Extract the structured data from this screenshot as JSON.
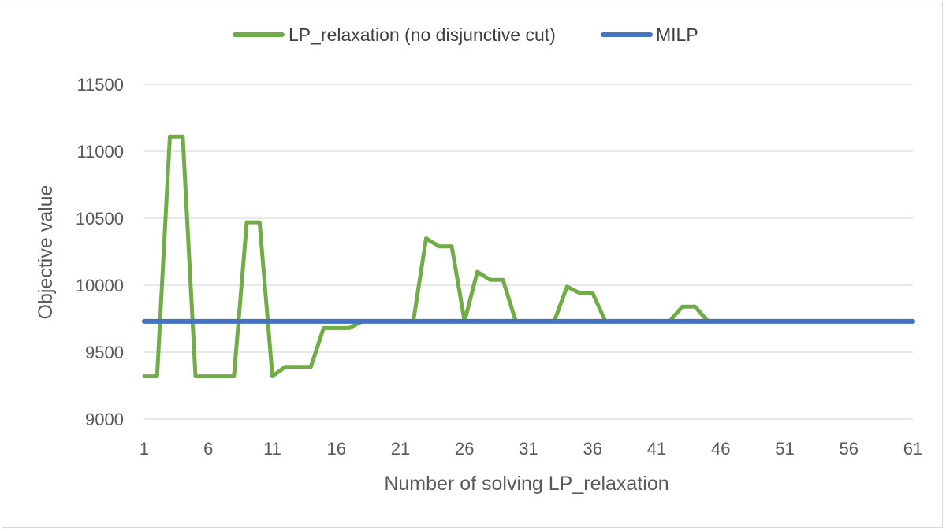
{
  "chart_data": {
    "type": "line",
    "xlabel": "Number of solving LP_relaxation",
    "ylabel": "Objective value",
    "ylim": [
      9000,
      11500
    ],
    "y_ticks": [
      9000,
      9500,
      10000,
      10500,
      11000,
      11500
    ],
    "xlim": [
      1,
      61
    ],
    "x_ticks": [
      1,
      6,
      11,
      16,
      21,
      26,
      31,
      36,
      41,
      46,
      51,
      56,
      61
    ],
    "grid": "horizontal",
    "legend_position": "top",
    "x": [
      1,
      2,
      3,
      4,
      5,
      6,
      7,
      8,
      9,
      10,
      11,
      12,
      13,
      14,
      15,
      16,
      17,
      18,
      19,
      20,
      21,
      22,
      23,
      24,
      25,
      26,
      27,
      28,
      29,
      30,
      31,
      32,
      33,
      34,
      35,
      36,
      37,
      38,
      39,
      40,
      41,
      42,
      43,
      44,
      45,
      46,
      47,
      48,
      49,
      50,
      51,
      52,
      53,
      54,
      55,
      56,
      57,
      58,
      59,
      60,
      61
    ],
    "series": [
      {
        "name": "LP_relaxation (no disjunctive cut)",
        "color": "#70ad47",
        "values": [
          9320,
          9320,
          11110,
          11110,
          9320,
          9320,
          9320,
          9320,
          10470,
          10470,
          9320,
          9390,
          9390,
          9390,
          9680,
          9680,
          9680,
          9730,
          9730,
          9730,
          9730,
          9730,
          10350,
          10290,
          10290,
          9730,
          10100,
          10040,
          10040,
          9730,
          9730,
          9730,
          9730,
          9990,
          9940,
          9940,
          9730,
          9730,
          9730,
          9730,
          9730,
          9730,
          9840,
          9840,
          9730,
          9730,
          9730,
          9730,
          9730,
          9730,
          9730,
          9730,
          9730,
          9730,
          9730,
          9730,
          9730,
          9730,
          9730,
          9730,
          9730
        ]
      },
      {
        "name": "MILP",
        "color": "#4472c4",
        "values": [
          9730,
          9730,
          9730,
          9730,
          9730,
          9730,
          9730,
          9730,
          9730,
          9730,
          9730,
          9730,
          9730,
          9730,
          9730,
          9730,
          9730,
          9730,
          9730,
          9730,
          9730,
          9730,
          9730,
          9730,
          9730,
          9730,
          9730,
          9730,
          9730,
          9730,
          9730,
          9730,
          9730,
          9730,
          9730,
          9730,
          9730,
          9730,
          9730,
          9730,
          9730,
          9730,
          9730,
          9730,
          9730,
          9730,
          9730,
          9730,
          9730,
          9730,
          9730,
          9730,
          9730,
          9730,
          9730,
          9730,
          9730,
          9730,
          9730,
          9730,
          9730
        ]
      }
    ]
  }
}
